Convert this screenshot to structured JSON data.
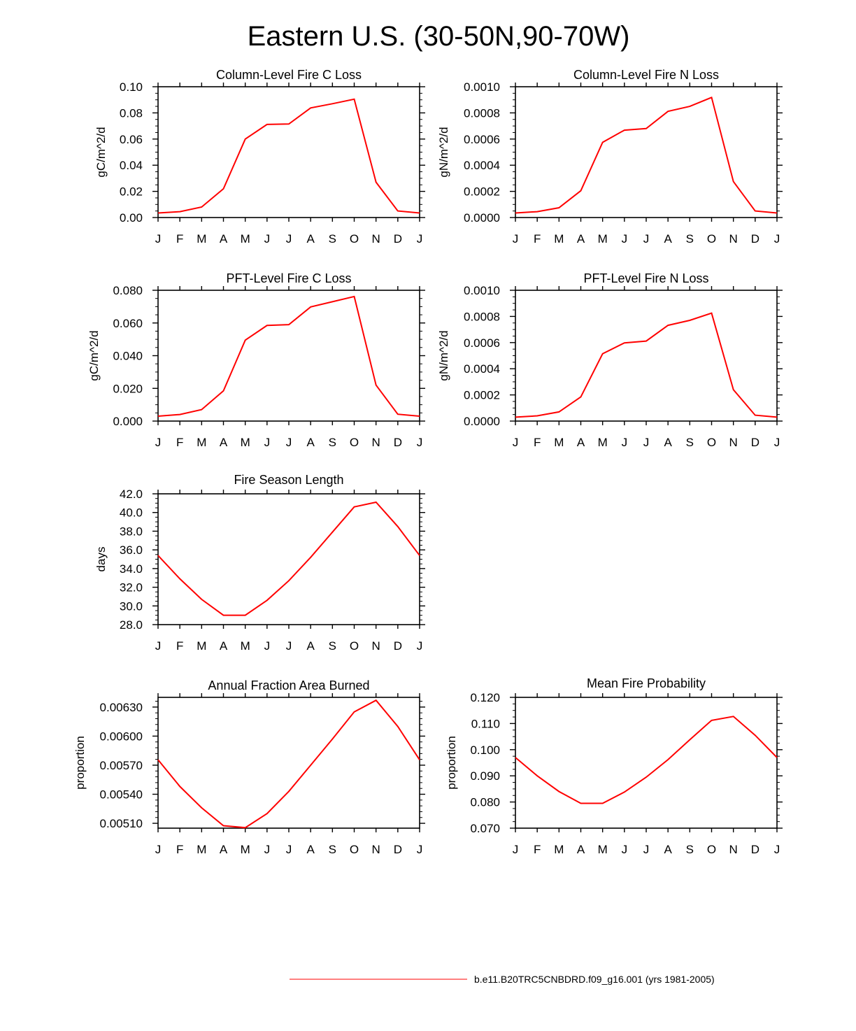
{
  "title": "Eastern U.S. (30-50N,90-70W)",
  "series_color": "#ff0000",
  "legend": {
    "label": "b.e11.B20TRC5CNBDRD.f09_g16.001 (yrs 1981-2005)"
  },
  "chart_data": [
    {
      "type": "line",
      "title": "Column-Level Fire C Loss",
      "ylabel": "gC/m^2/d",
      "categories": [
        "J",
        "F",
        "M",
        "A",
        "M",
        "J",
        "J",
        "A",
        "S",
        "O",
        "N",
        "D",
        "J"
      ],
      "yticks": [
        "0.00",
        "0.02",
        "0.04",
        "0.06",
        "0.08",
        "0.10"
      ],
      "ylim": [
        0,
        0.1
      ],
      "minor_per_major": 4,
      "values": [
        0.0035,
        0.0045,
        0.008,
        0.022,
        0.06,
        0.0712,
        0.0715,
        0.0838,
        0.087,
        0.0905,
        0.027,
        0.005,
        0.0035
      ]
    },
    {
      "type": "line",
      "title": "Column-Level Fire N Loss",
      "ylabel": "gN/m^2/d",
      "categories": [
        "J",
        "F",
        "M",
        "A",
        "M",
        "J",
        "J",
        "A",
        "S",
        "O",
        "N",
        "D",
        "J"
      ],
      "yticks": [
        "0.0000",
        "0.0002",
        "0.0004",
        "0.0006",
        "0.0008",
        "0.0010"
      ],
      "ylim": [
        0,
        0.001
      ],
      "minor_per_major": 4,
      "values": [
        3.5e-05,
        4.5e-05,
        7.5e-05,
        0.000205,
        0.000575,
        0.000668,
        0.00068,
        0.000812,
        0.00085,
        0.000918,
        0.000275,
        5e-05,
        3.5e-05
      ]
    },
    {
      "type": "line",
      "title": "PFT-Level Fire C Loss",
      "ylabel": "gC/m^2/d",
      "categories": [
        "J",
        "F",
        "M",
        "A",
        "M",
        "J",
        "J",
        "A",
        "S",
        "O",
        "N",
        "D",
        "J"
      ],
      "yticks": [
        "0.000",
        "0.020",
        "0.040",
        "0.060",
        "0.080"
      ],
      "ylim": [
        0,
        0.08
      ],
      "minor_per_major": 4,
      "values": [
        0.003,
        0.004,
        0.007,
        0.0185,
        0.0495,
        0.0585,
        0.059,
        0.0698,
        0.073,
        0.0762,
        0.022,
        0.0042,
        0.003
      ]
    },
    {
      "type": "line",
      "title": "PFT-Level Fire N Loss",
      "ylabel": "gN/m^2/d",
      "categories": [
        "J",
        "F",
        "M",
        "A",
        "M",
        "J",
        "J",
        "A",
        "S",
        "O",
        "N",
        "D",
        "J"
      ],
      "yticks": [
        "0.0000",
        "0.0002",
        "0.0004",
        "0.0006",
        "0.0008",
        "0.0010"
      ],
      "ylim": [
        0,
        0.001
      ],
      "minor_per_major": 4,
      "values": [
        3e-05,
        4e-05,
        7e-05,
        0.000185,
        0.000515,
        0.000598,
        0.000612,
        0.000732,
        0.00077,
        0.000825,
        0.00024,
        4.5e-05,
        3e-05
      ]
    },
    {
      "type": "line",
      "title": "Fire Season Length",
      "ylabel": "days",
      "categories": [
        "J",
        "F",
        "M",
        "A",
        "M",
        "J",
        "J",
        "A",
        "S",
        "O",
        "N",
        "D",
        "J"
      ],
      "yticks": [
        "28.0",
        "30.0",
        "32.0",
        "34.0",
        "36.0",
        "38.0",
        "40.0",
        "42.0"
      ],
      "ylim": [
        28,
        42
      ],
      "minor_per_major": 4,
      "values": [
        35.4,
        32.9,
        30.7,
        29.0,
        29.0,
        30.6,
        32.7,
        35.2,
        37.9,
        40.6,
        41.1,
        38.5,
        35.4
      ]
    },
    {
      "type": "line",
      "title": "Annual Fraction Area Burned",
      "ylabel": "proportion",
      "categories": [
        "J",
        "F",
        "M",
        "A",
        "M",
        "J",
        "J",
        "A",
        "S",
        "O",
        "N",
        "D",
        "J"
      ],
      "yticks": [
        "0.00510",
        "0.00540",
        "0.00570",
        "0.00600",
        "0.00630"
      ],
      "ylim": [
        0.00505,
        0.0064
      ],
      "minor_per_major": 5,
      "values": [
        0.005755,
        0.00548,
        0.00526,
        0.005075,
        0.005055,
        0.0052,
        0.00543,
        0.0057,
        0.00597,
        0.00625,
        0.00637,
        0.0061,
        0.005755
      ]
    },
    {
      "type": "line",
      "title": "Mean Fire Probability",
      "ylabel": "proportion",
      "categories": [
        "J",
        "F",
        "M",
        "A",
        "M",
        "J",
        "J",
        "A",
        "S",
        "O",
        "N",
        "D",
        "J"
      ],
      "yticks": [
        "0.070",
        "0.080",
        "0.090",
        "0.100",
        "0.110",
        "0.120"
      ],
      "ylim": [
        0.07,
        0.12
      ],
      "minor_per_major": 4,
      "values": [
        0.097,
        0.09,
        0.084,
        0.0795,
        0.0795,
        0.0838,
        0.0895,
        0.0962,
        0.1038,
        0.1112,
        0.1127,
        0.1055,
        0.097
      ]
    }
  ]
}
